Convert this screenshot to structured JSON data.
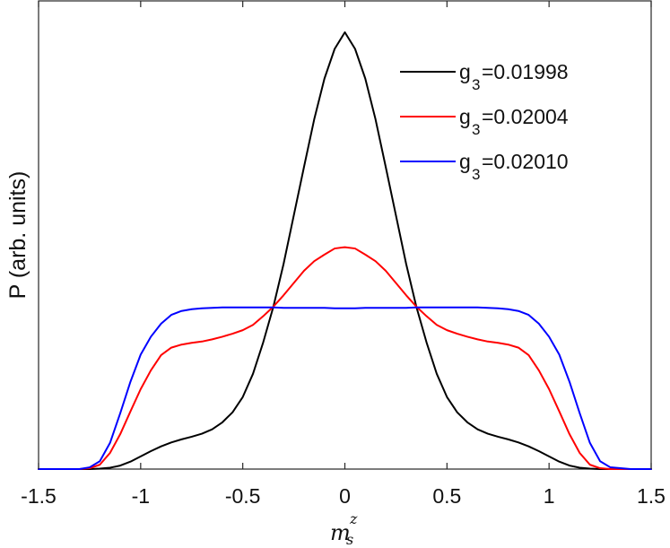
{
  "chart_data": {
    "type": "line",
    "title": "",
    "xlabel": {
      "main": "m",
      "sub": "s",
      "sup": "z"
    },
    "ylabel": "P (arb. units)",
    "xlim": [
      -1.5,
      1.5
    ],
    "ylim": [
      0,
      1.0
    ],
    "grid": false,
    "legend_position": "top-right",
    "x_ticks": [
      -1.5,
      -1,
      -0.5,
      0,
      0.5,
      1,
      1.5
    ],
    "x_tick_labels": [
      "-1.5",
      "-1",
      "-0.5",
      "0",
      "0.5",
      "1",
      "1.5"
    ],
    "x": [
      -1.5,
      -1.4,
      -1.3,
      -1.25,
      -1.2,
      -1.15,
      -1.1,
      -1.05,
      -1.0,
      -0.95,
      -0.9,
      -0.85,
      -0.8,
      -0.75,
      -0.7,
      -0.65,
      -0.6,
      -0.55,
      -0.5,
      -0.45,
      -0.4,
      -0.35,
      -0.3,
      -0.25,
      -0.2,
      -0.15,
      -0.1,
      -0.05,
      0.0,
      0.05,
      0.1,
      0.15,
      0.2,
      0.25,
      0.3,
      0.35,
      0.4,
      0.45,
      0.5,
      0.55,
      0.6,
      0.65,
      0.7,
      0.75,
      0.8,
      0.85,
      0.9,
      0.95,
      1.0,
      1.05,
      1.1,
      1.15,
      1.2,
      1.25,
      1.3,
      1.4,
      1.5
    ],
    "series": [
      {
        "name": "g3=0.01998",
        "label_main": "g",
        "label_sub": "3",
        "label_value": "=0.01998",
        "color": "#000000",
        "values": [
          0.0,
          0.0,
          0.0,
          0.0,
          0.001,
          0.003,
          0.008,
          0.017,
          0.029,
          0.041,
          0.052,
          0.061,
          0.068,
          0.074,
          0.081,
          0.091,
          0.107,
          0.13,
          0.165,
          0.218,
          0.29,
          0.372,
          0.47,
          0.581,
          0.692,
          0.801,
          0.894,
          0.962,
          1.0,
          0.962,
          0.894,
          0.801,
          0.692,
          0.581,
          0.47,
          0.372,
          0.29,
          0.218,
          0.165,
          0.13,
          0.107,
          0.091,
          0.081,
          0.074,
          0.068,
          0.061,
          0.052,
          0.041,
          0.029,
          0.017,
          0.008,
          0.003,
          0.001,
          0.0,
          0.0,
          0.0,
          0.0
        ]
      },
      {
        "name": "g3=0.02004",
        "label_main": "g",
        "label_sub": "3",
        "label_value": "=0.02004",
        "color": "#ff0000",
        "values": [
          0.0,
          0.0,
          0.0,
          0.002,
          0.01,
          0.037,
          0.08,
          0.132,
          0.183,
          0.226,
          0.261,
          0.278,
          0.285,
          0.289,
          0.292,
          0.297,
          0.303,
          0.31,
          0.318,
          0.33,
          0.35,
          0.372,
          0.398,
          0.426,
          0.454,
          0.476,
          0.491,
          0.505,
          0.508,
          0.505,
          0.491,
          0.476,
          0.454,
          0.426,
          0.398,
          0.372,
          0.35,
          0.33,
          0.318,
          0.31,
          0.303,
          0.297,
          0.292,
          0.289,
          0.285,
          0.278,
          0.261,
          0.226,
          0.183,
          0.132,
          0.08,
          0.037,
          0.01,
          0.002,
          0.0,
          0.0,
          0.0
        ]
      },
      {
        "name": "g3=0.02010",
        "label_main": "g",
        "label_sub": "3",
        "label_value": "=0.02010",
        "color": "#0000ff",
        "values": [
          0.0,
          0.0,
          0.0,
          0.004,
          0.018,
          0.06,
          0.128,
          0.2,
          0.262,
          0.303,
          0.333,
          0.353,
          0.362,
          0.366,
          0.368,
          0.369,
          0.37,
          0.37,
          0.37,
          0.37,
          0.37,
          0.37,
          0.369,
          0.369,
          0.369,
          0.369,
          0.369,
          0.368,
          0.368,
          0.368,
          0.369,
          0.369,
          0.369,
          0.369,
          0.369,
          0.37,
          0.37,
          0.37,
          0.37,
          0.37,
          0.37,
          0.37,
          0.369,
          0.368,
          0.366,
          0.362,
          0.353,
          0.333,
          0.303,
          0.262,
          0.2,
          0.128,
          0.06,
          0.018,
          0.004,
          0.0,
          0.0
        ]
      }
    ]
  }
}
